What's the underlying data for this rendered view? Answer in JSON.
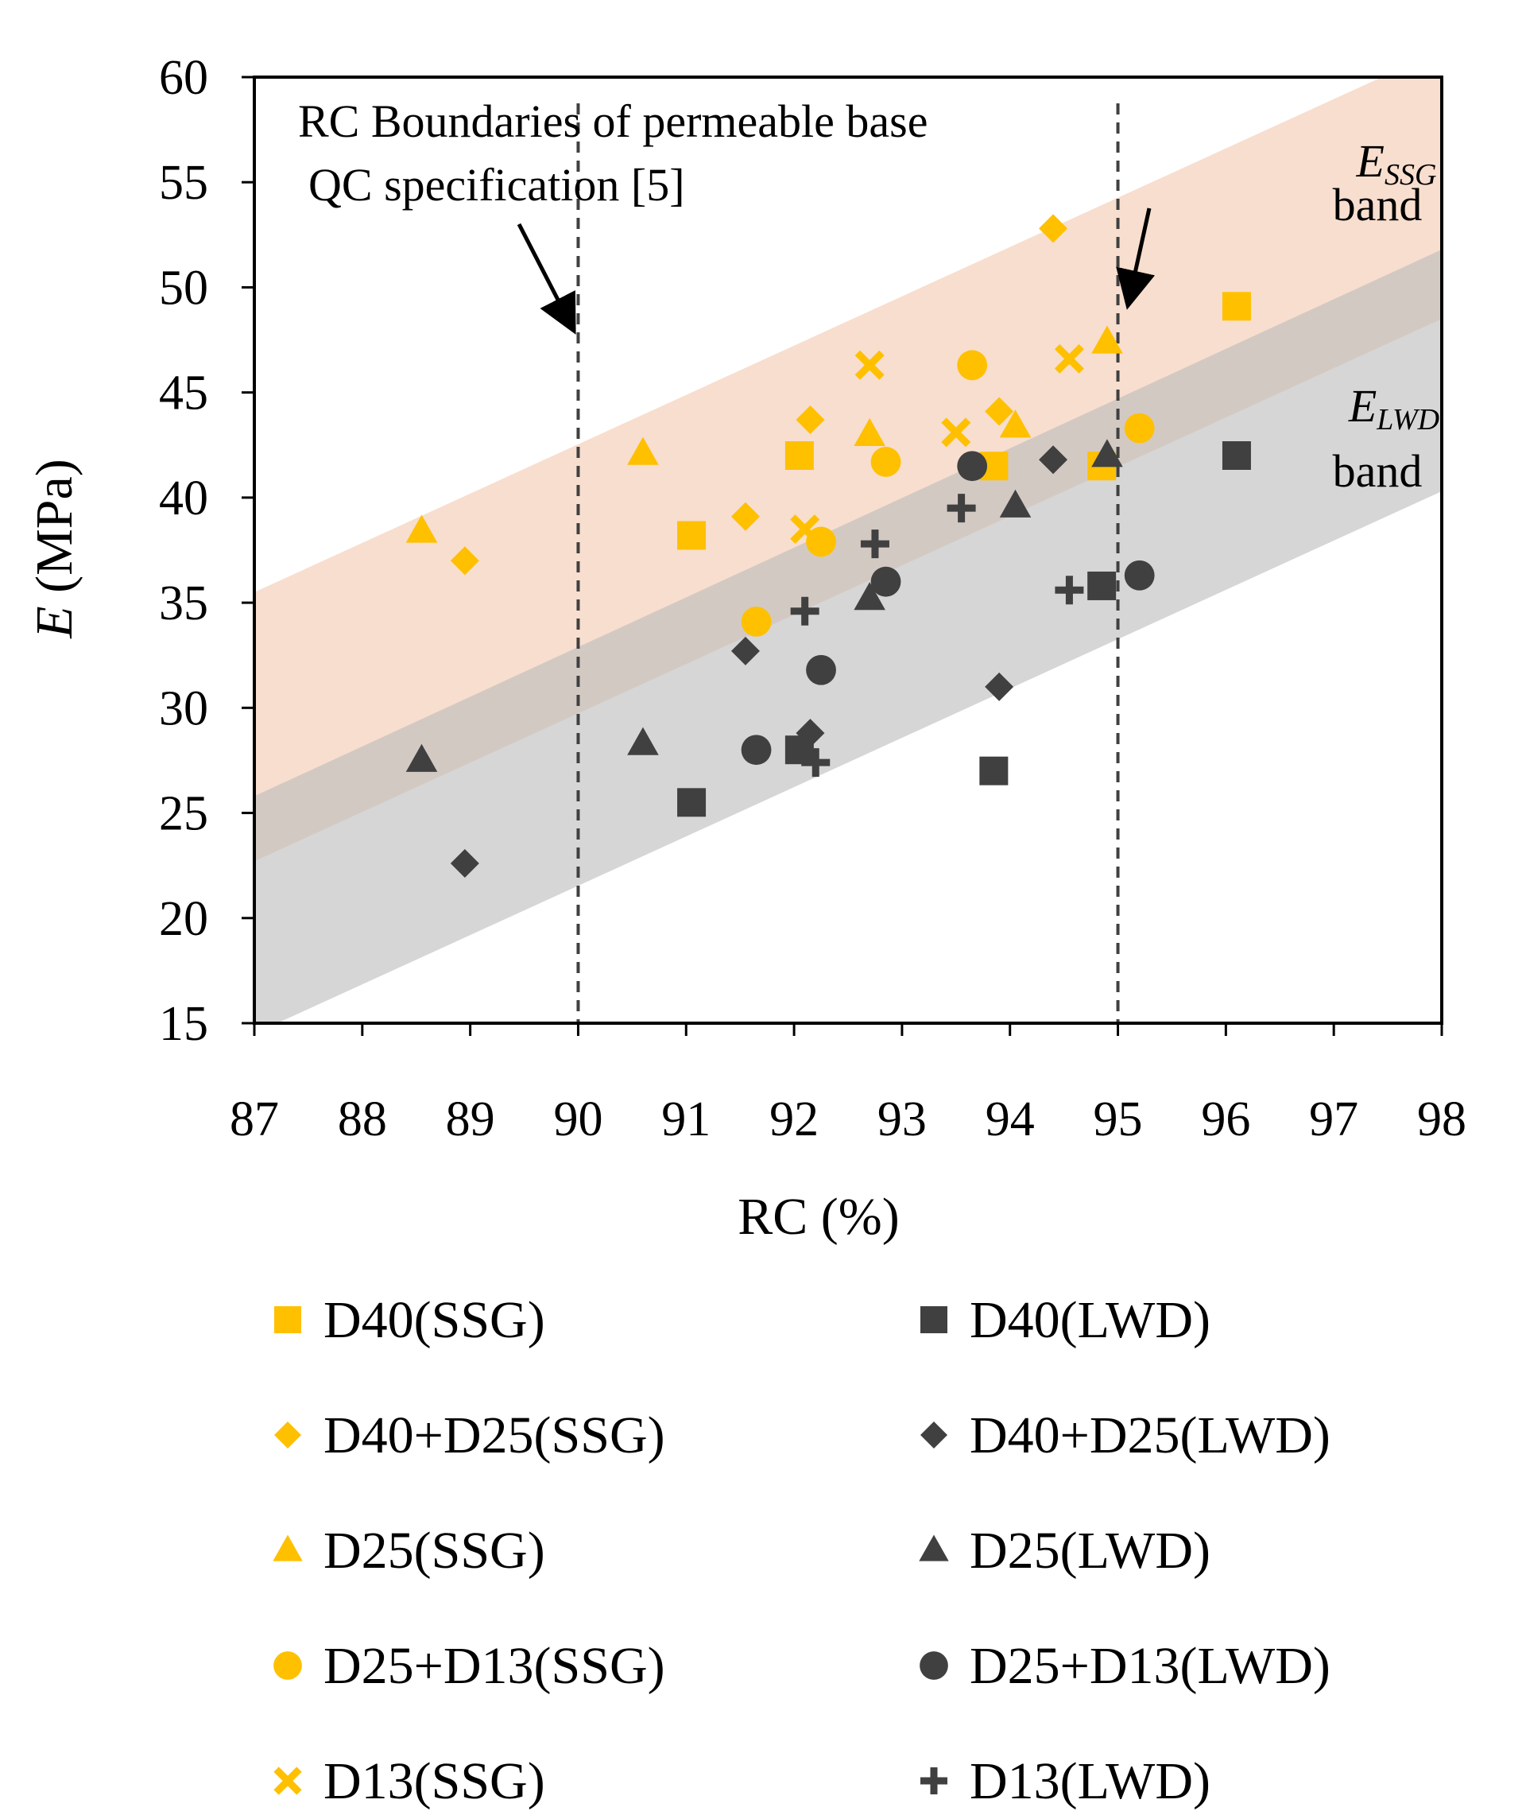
{
  "chart_data": {
    "type": "scatter",
    "title": "",
    "xlabel": "RC (%)",
    "ylabel_italic": "E",
    "ylabel_rest": " (MPa)",
    "xlim": [
      87,
      98
    ],
    "ylim": [
      15,
      60
    ],
    "xticks": [
      "87",
      "88",
      "89",
      "90",
      "91",
      "92",
      "93",
      "94",
      "95",
      "96",
      "97",
      "98"
    ],
    "yticks": [
      "15",
      "20",
      "25",
      "30",
      "35",
      "40",
      "45",
      "50",
      "55",
      "60"
    ],
    "boundaries": [
      90,
      95
    ],
    "bands": [
      {
        "name": "E_SSG band",
        "lower": [
          [
            87,
            22.7
          ],
          [
            98,
            48.5
          ]
        ],
        "upper": [
          [
            87,
            35.5
          ],
          [
            98,
            61.3
          ]
        ],
        "color": "#f6d3bd"
      },
      {
        "name": "E_LWD band",
        "lower": [
          [
            87,
            14.5
          ],
          [
            98,
            40.3
          ]
        ],
        "upper": [
          [
            87,
            25.8
          ],
          [
            98,
            51.8
          ]
        ],
        "color": "#bdbdbd"
      }
    ],
    "annotations": {
      "boundary_line1": "RC Boundaries of permeable base",
      "boundary_line2": "QC specification [5]",
      "essg_main": "E",
      "essg_sub": "SSG",
      "essg_band": "band",
      "elwd_main": "E",
      "elwd_sub": "LWD",
      "elwd_band": "band"
    },
    "colors": {
      "ssg": "#FFC000",
      "lwd": "#404040"
    },
    "series": [
      {
        "name": "D40(SSG)",
        "marker": "square",
        "color": "ssg",
        "points": [
          [
            91.05,
            38.2
          ],
          [
            92.05,
            42.0
          ],
          [
            93.85,
            41.5
          ],
          [
            94.85,
            41.5
          ],
          [
            96.1,
            49.1
          ]
        ]
      },
      {
        "name": "D40(LWD)",
        "marker": "square",
        "color": "lwd",
        "points": [
          [
            91.05,
            25.5
          ],
          [
            92.05,
            28.0
          ],
          [
            93.85,
            27.0
          ],
          [
            94.85,
            35.8
          ],
          [
            96.1,
            42.0
          ]
        ]
      },
      {
        "name": "D40+D25(SSG)",
        "marker": "diamond",
        "color": "ssg",
        "points": [
          [
            88.95,
            37.0
          ],
          [
            91.55,
            39.1
          ],
          [
            92.15,
            43.7
          ],
          [
            93.9,
            44.1
          ],
          [
            94.4,
            52.8
          ]
        ]
      },
      {
        "name": "D40+D25(LWD)",
        "marker": "diamond",
        "color": "lwd",
        "points": [
          [
            88.95,
            22.6
          ],
          [
            91.55,
            32.7
          ],
          [
            92.15,
            28.8
          ],
          [
            93.9,
            31.0
          ],
          [
            94.4,
            41.8
          ]
        ]
      },
      {
        "name": "D25(SSG)",
        "marker": "triangle",
        "color": "ssg",
        "points": [
          [
            88.55,
            38.4
          ],
          [
            90.6,
            42.1
          ],
          [
            92.7,
            43.0
          ],
          [
            94.05,
            43.4
          ],
          [
            94.9,
            47.4
          ]
        ]
      },
      {
        "name": "D25(LWD)",
        "marker": "triangle",
        "color": "lwd",
        "points": [
          [
            88.55,
            27.5
          ],
          [
            90.6,
            28.3
          ],
          [
            92.7,
            35.2
          ],
          [
            94.05,
            39.6
          ],
          [
            94.9,
            42.0
          ]
        ]
      },
      {
        "name": "D25+D13(SSG)",
        "marker": "circle",
        "color": "ssg",
        "points": [
          [
            91.65,
            34.1
          ],
          [
            92.25,
            37.9
          ],
          [
            92.85,
            41.7
          ],
          [
            93.65,
            46.3
          ],
          [
            95.2,
            43.3
          ]
        ]
      },
      {
        "name": "D25+D13(LWD)",
        "marker": "circle",
        "color": "lwd",
        "points": [
          [
            91.65,
            28.0
          ],
          [
            92.25,
            31.8
          ],
          [
            92.85,
            36.0
          ],
          [
            93.65,
            41.5
          ],
          [
            95.2,
            36.3
          ]
        ]
      },
      {
        "name": "D13(SSG)",
        "marker": "x",
        "color": "ssg",
        "points": [
          [
            92.1,
            38.5
          ],
          [
            92.7,
            46.3
          ],
          [
            93.5,
            43.1
          ],
          [
            94.55,
            46.6
          ]
        ]
      },
      {
        "name": "D13(LWD)",
        "marker": "plus",
        "color": "lwd",
        "points": [
          [
            92.1,
            34.6
          ],
          [
            92.2,
            27.4
          ],
          [
            92.75,
            37.8
          ],
          [
            93.55,
            39.5
          ],
          [
            94.55,
            35.6
          ]
        ]
      }
    ]
  },
  "legend": [
    {
      "label": "D40(SSG)",
      "marker": "square",
      "color": "ssg"
    },
    {
      "label": "D40(LWD)",
      "marker": "square",
      "color": "lwd"
    },
    {
      "label": "D40+D25(SSG)",
      "marker": "diamond",
      "color": "ssg"
    },
    {
      "label": "D40+D25(LWD)",
      "marker": "diamond",
      "color": "lwd"
    },
    {
      "label": "D25(SSG)",
      "marker": "triangle",
      "color": "ssg"
    },
    {
      "label": "D25(LWD)",
      "marker": "triangle",
      "color": "lwd"
    },
    {
      "label": "D25+D13(SSG)",
      "marker": "circle",
      "color": "ssg"
    },
    {
      "label": "D25+D13(LWD)",
      "marker": "circle",
      "color": "lwd"
    },
    {
      "label": "D13(SSG)",
      "marker": "x",
      "color": "ssg"
    },
    {
      "label": "D13(LWD)",
      "marker": "plus",
      "color": "lwd"
    }
  ]
}
